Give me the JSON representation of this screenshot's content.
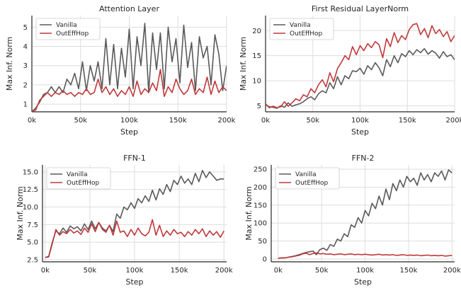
{
  "chart_data": [
    {
      "type": "line",
      "title": "Attention Layer",
      "xlabel": "Step",
      "ylabel": "Max Inf. Norm",
      "xlim": [
        0,
        200000
      ],
      "ylim": [
        0.6,
        5.6
      ],
      "xticks": [
        0,
        50000,
        100000,
        150000,
        200000
      ],
      "xtick_labels": [
        "0k",
        "50k",
        "100k",
        "150k",
        "200k"
      ],
      "yticks": [
        1,
        2,
        3,
        4,
        5
      ],
      "ytick_labels": [
        "1",
        "2",
        "3",
        "4",
        "5"
      ],
      "grid": true,
      "legend": "top-left",
      "series": [
        {
          "name": "Vanilla",
          "color": "#5a5a5a",
          "x": [
            0,
            4000,
            8000,
            12000,
            16000,
            20000,
            24000,
            28000,
            32000,
            36000,
            40000,
            44000,
            48000,
            52000,
            56000,
            60000,
            64000,
            68000,
            72000,
            76000,
            80000,
            84000,
            88000,
            92000,
            96000,
            100000,
            104000,
            108000,
            112000,
            116000,
            120000,
            124000,
            128000,
            132000,
            136000,
            140000,
            144000,
            148000,
            152000,
            156000,
            160000,
            164000,
            168000,
            172000,
            176000,
            180000,
            184000,
            188000,
            192000,
            196000,
            200000
          ],
          "y": [
            0.6,
            0.8,
            1.1,
            1.5,
            1.6,
            1.9,
            1.6,
            1.9,
            1.6,
            2.3,
            2.0,
            2.6,
            1.8,
            3.2,
            1.7,
            3.0,
            2.2,
            3.2,
            1.8,
            4.4,
            2.0,
            4.1,
            1.8,
            3.9,
            2.4,
            4.9,
            1.8,
            4.5,
            3.0,
            5.2,
            1.6,
            4.7,
            2.8,
            4.7,
            1.8,
            5.0,
            3.2,
            4.4,
            2.1,
            5.1,
            2.9,
            4.2,
            1.7,
            4.5,
            3.4,
            4.0,
            2.0,
            4.6,
            3.6,
            1.7,
            3.0
          ]
        },
        {
          "name": "OutEffHop",
          "color": "#c0393b",
          "x": [
            0,
            4000,
            8000,
            12000,
            16000,
            20000,
            24000,
            28000,
            32000,
            36000,
            40000,
            44000,
            48000,
            52000,
            56000,
            60000,
            64000,
            68000,
            72000,
            76000,
            80000,
            84000,
            88000,
            92000,
            96000,
            100000,
            104000,
            108000,
            112000,
            116000,
            120000,
            124000,
            128000,
            132000,
            136000,
            140000,
            144000,
            148000,
            152000,
            156000,
            160000,
            164000,
            168000,
            172000,
            176000,
            180000,
            184000,
            188000,
            192000,
            196000,
            200000
          ],
          "y": [
            0.6,
            0.7,
            1.2,
            1.4,
            1.6,
            1.4,
            1.6,
            1.5,
            1.7,
            1.5,
            1.6,
            1.4,
            1.6,
            1.5,
            1.8,
            1.5,
            1.6,
            2.3,
            1.6,
            1.9,
            1.5,
            1.8,
            1.4,
            1.7,
            1.5,
            1.9,
            1.4,
            2.2,
            1.5,
            1.8,
            1.6,
            2.1,
            1.7,
            2.8,
            1.4,
            1.9,
            1.6,
            2.3,
            1.8,
            1.5,
            1.7,
            2.3,
            1.5,
            1.8,
            1.6,
            2.4,
            1.5,
            2.2,
            1.6,
            1.9,
            1.7
          ]
        }
      ]
    },
    {
      "type": "line",
      "title": "First Residual LayerNorm",
      "xlabel": "Step",
      "ylabel": "Max Inf. Norm",
      "xlim": [
        0,
        200000
      ],
      "ylim": [
        3.8,
        23
      ],
      "xticks": [
        0,
        50000,
        100000,
        150000,
        200000
      ],
      "xtick_labels": [
        "0k",
        "50k",
        "100k",
        "150k",
        "200k"
      ],
      "yticks": [
        5,
        10,
        15,
        20
      ],
      "ytick_labels": [
        "5",
        "10",
        "15",
        "20"
      ],
      "grid": true,
      "legend": "top-left",
      "series": [
        {
          "name": "Vanilla",
          "color": "#5a5a5a",
          "x": [
            0,
            4000,
            8000,
            12000,
            16000,
            20000,
            24000,
            28000,
            32000,
            36000,
            40000,
            44000,
            48000,
            52000,
            56000,
            60000,
            64000,
            68000,
            72000,
            76000,
            80000,
            84000,
            88000,
            92000,
            96000,
            100000,
            104000,
            108000,
            112000,
            116000,
            120000,
            124000,
            128000,
            132000,
            136000,
            140000,
            144000,
            148000,
            152000,
            156000,
            160000,
            164000,
            168000,
            172000,
            176000,
            180000,
            184000,
            188000,
            192000,
            196000,
            200000
          ],
          "y": [
            5.2,
            4.8,
            4.7,
            4.5,
            5.0,
            4.7,
            5.6,
            4.9,
            5.2,
            5.4,
            5.8,
            6.4,
            6.8,
            6.2,
            7.4,
            8.0,
            7.6,
            9.6,
            8.4,
            10.8,
            9.2,
            11.0,
            10.4,
            12.0,
            11.8,
            12.5,
            11.3,
            13.0,
            12.2,
            13.6,
            12.6,
            11.0,
            14.2,
            12.8,
            15.0,
            13.6,
            15.4,
            14.8,
            16.0,
            15.2,
            16.2,
            15.6,
            16.4,
            15.3,
            16.0,
            15.5,
            14.5,
            15.8,
            14.8,
            15.2,
            14.2
          ]
        },
        {
          "name": "OutEffHop",
          "color": "#c0393b",
          "x": [
            0,
            4000,
            8000,
            12000,
            16000,
            20000,
            24000,
            28000,
            32000,
            36000,
            40000,
            44000,
            48000,
            52000,
            56000,
            60000,
            64000,
            68000,
            72000,
            76000,
            80000,
            84000,
            88000,
            92000,
            96000,
            100000,
            104000,
            108000,
            112000,
            116000,
            120000,
            124000,
            128000,
            132000,
            136000,
            140000,
            144000,
            148000,
            152000,
            156000,
            160000,
            164000,
            168000,
            172000,
            176000,
            180000,
            184000,
            188000,
            192000,
            196000,
            200000
          ],
          "y": [
            5.4,
            4.6,
            4.9,
            4.6,
            4.8,
            5.8,
            4.9,
            5.6,
            6.4,
            6.0,
            7.2,
            6.8,
            8.4,
            7.6,
            9.2,
            10.2,
            8.8,
            11.6,
            9.8,
            12.4,
            13.6,
            15.0,
            14.2,
            16.8,
            15.2,
            17.0,
            16.0,
            17.4,
            16.6,
            17.8,
            17.2,
            14.6,
            18.4,
            16.8,
            19.6,
            17.6,
            19.0,
            18.2,
            20.2,
            21.2,
            21.4,
            19.2,
            20.4,
            18.6,
            21.0,
            19.4,
            20.2,
            18.8,
            19.8,
            17.8,
            19.0
          ]
        }
      ]
    },
    {
      "type": "line",
      "title": "FFN-1",
      "xlabel": "Step",
      "ylabel": "Max Inf. Norm",
      "xlim": [
        -3000,
        203000
      ],
      "ylim": [
        2.2,
        16.0
      ],
      "xticks": [
        0,
        50000,
        100000,
        150000,
        200000
      ],
      "xtick_labels": [
        "0k",
        "50k",
        "100k",
        "150k",
        "200k"
      ],
      "yticks": [
        2.5,
        5.0,
        7.5,
        10.0,
        12.5,
        15.0
      ],
      "ytick_labels": [
        "2.5",
        "5.0",
        "7.5",
        "10.0",
        "12.5",
        "15.0"
      ],
      "grid": true,
      "legend": "top-left",
      "series": [
        {
          "name": "Vanilla",
          "color": "#5a5a5a",
          "x": [
            0,
            4000,
            8000,
            12000,
            16000,
            20000,
            24000,
            28000,
            32000,
            36000,
            40000,
            44000,
            48000,
            52000,
            56000,
            60000,
            64000,
            68000,
            72000,
            76000,
            80000,
            84000,
            88000,
            92000,
            96000,
            100000,
            104000,
            108000,
            112000,
            116000,
            120000,
            124000,
            128000,
            132000,
            136000,
            140000,
            144000,
            148000,
            152000,
            156000,
            160000,
            164000,
            168000,
            172000,
            176000,
            180000,
            184000,
            188000,
            192000,
            196000,
            200000
          ],
          "y": [
            2.8,
            3.0,
            5.0,
            6.6,
            6.2,
            7.0,
            6.4,
            7.3,
            6.9,
            7.2,
            6.6,
            7.6,
            6.8,
            8.0,
            6.9,
            7.8,
            7.0,
            6.6,
            7.4,
            6.5,
            9.0,
            8.4,
            10.0,
            9.6,
            10.6,
            9.8,
            11.2,
            10.6,
            11.6,
            10.8,
            12.4,
            11.0,
            12.6,
            11.8,
            13.2,
            12.2,
            13.8,
            13.2,
            14.4,
            13.4,
            14.0,
            13.2,
            14.8,
            13.6,
            15.2,
            14.2,
            15.0,
            14.4,
            13.8,
            14.0,
            14.0
          ]
        },
        {
          "name": "OutEffHop",
          "color": "#c0393b",
          "x": [
            0,
            4000,
            8000,
            12000,
            16000,
            20000,
            24000,
            28000,
            32000,
            36000,
            40000,
            44000,
            48000,
            52000,
            56000,
            60000,
            64000,
            68000,
            72000,
            76000,
            80000,
            84000,
            88000,
            92000,
            96000,
            100000,
            104000,
            108000,
            112000,
            116000,
            120000,
            124000,
            128000,
            132000,
            136000,
            140000,
            144000,
            148000,
            152000,
            156000,
            160000,
            164000,
            168000,
            172000,
            176000,
            180000,
            184000,
            188000,
            192000,
            196000,
            200000
          ],
          "y": [
            2.8,
            2.9,
            4.8,
            6.8,
            6.0,
            6.5,
            6.2,
            6.8,
            6.3,
            6.6,
            6.1,
            7.0,
            6.4,
            7.6,
            6.5,
            7.8,
            6.8,
            6.4,
            7.4,
            6.0,
            8.0,
            6.4,
            6.6,
            5.8,
            6.8,
            6.0,
            7.0,
            6.2,
            5.9,
            6.4,
            8.2,
            6.0,
            7.4,
            5.8,
            6.6,
            6.0,
            6.8,
            6.2,
            6.4,
            5.8,
            6.5,
            6.0,
            6.8,
            6.2,
            6.9,
            5.8,
            6.6,
            6.0,
            6.5,
            5.7,
            6.6
          ]
        }
      ]
    },
    {
      "type": "line",
      "title": "FFN-2",
      "xlabel": "Step",
      "ylabel": "Max Inf. Norm",
      "xlim": [
        -8000,
        203000
      ],
      "ylim": [
        -8,
        262
      ],
      "xticks": [
        0,
        50000,
        100000,
        150000,
        200000
      ],
      "xtick_labels": [
        "0k",
        "50k",
        "100k",
        "150k",
        "200k"
      ],
      "yticks": [
        0,
        50,
        100,
        150,
        200,
        250
      ],
      "ytick_labels": [
        "0",
        "50",
        "100",
        "150",
        "200",
        "250"
      ],
      "grid": true,
      "legend": "top-left",
      "series": [
        {
          "name": "Vanilla",
          "color": "#5a5a5a",
          "x": [
            0,
            4000,
            8000,
            12000,
            16000,
            20000,
            24000,
            28000,
            32000,
            36000,
            40000,
            44000,
            48000,
            52000,
            56000,
            60000,
            64000,
            68000,
            72000,
            76000,
            80000,
            84000,
            88000,
            92000,
            96000,
            100000,
            104000,
            108000,
            112000,
            116000,
            120000,
            124000,
            128000,
            132000,
            136000,
            140000,
            144000,
            148000,
            152000,
            156000,
            160000,
            164000,
            168000,
            172000,
            176000,
            180000,
            184000,
            188000,
            192000,
            196000,
            200000
          ],
          "y": [
            2,
            3,
            3,
            5,
            7,
            9,
            12,
            15,
            18,
            20,
            22,
            12,
            26,
            30,
            24,
            40,
            35,
            55,
            50,
            70,
            62,
            95,
            88,
            115,
            100,
            135,
            120,
            155,
            140,
            175,
            150,
            195,
            165,
            210,
            190,
            220,
            200,
            230,
            215,
            225,
            205,
            240,
            220,
            235,
            215,
            240,
            230,
            245,
            220,
            248,
            240
          ]
        },
        {
          "name": "OutEffHop",
          "color": "#c0393b",
          "x": [
            0,
            4000,
            8000,
            12000,
            16000,
            20000,
            24000,
            28000,
            32000,
            36000,
            40000,
            44000,
            48000,
            52000,
            56000,
            60000,
            64000,
            68000,
            72000,
            76000,
            80000,
            84000,
            88000,
            92000,
            96000,
            100000,
            104000,
            108000,
            112000,
            116000,
            120000,
            124000,
            128000,
            132000,
            136000,
            140000,
            144000,
            148000,
            152000,
            156000,
            160000,
            164000,
            168000,
            172000,
            176000,
            180000,
            184000,
            188000,
            192000,
            196000,
            200000
          ],
          "y": [
            2,
            3,
            3,
            5,
            6,
            8,
            10,
            14,
            16,
            12,
            15,
            17,
            14,
            15,
            13,
            14,
            12,
            13,
            14,
            12,
            13,
            14,
            12,
            13,
            12,
            13,
            12,
            11,
            12,
            13,
            11,
            12,
            11,
            12,
            10,
            11,
            12,
            10,
            11,
            10,
            11,
            9,
            10,
            11,
            9,
            10,
            9,
            10,
            8,
            9,
            10
          ]
        }
      ]
    }
  ]
}
